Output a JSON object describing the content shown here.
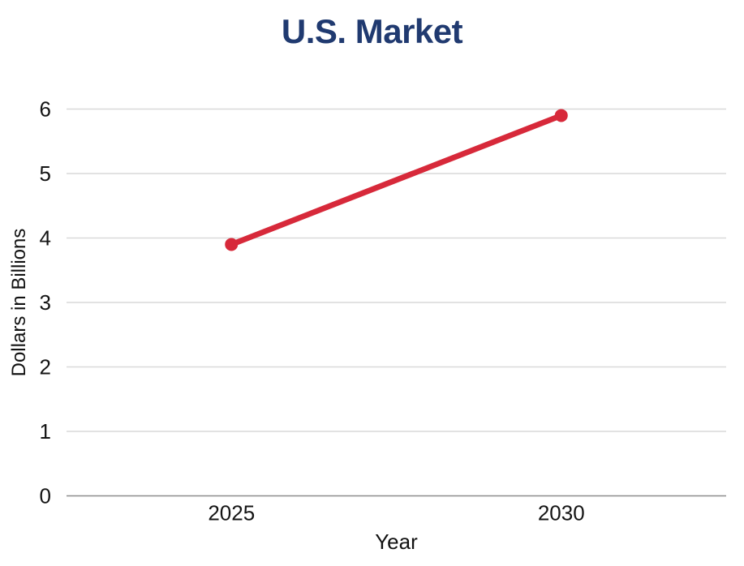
{
  "page": {
    "title": "U.S. Market"
  },
  "axes": {
    "x_title": "Year",
    "y_title": "Dollars in Billions"
  },
  "colors": {
    "title": "#203a70",
    "line": "#d7293a",
    "marker": "#d7293a",
    "gridline": "#d9d9d9",
    "zero_axis": "#8c8c8c",
    "tick_text": "#141414",
    "background": "#ffffff"
  },
  "chart_data": {
    "type": "line",
    "title": "U.S. Market",
    "xlabel": "Year",
    "ylabel": "Dollars in Billions",
    "x": [
      2025,
      2030
    ],
    "series": [
      {
        "name": "U.S. Market",
        "values": [
          3.9,
          5.9
        ]
      }
    ],
    "x_tick_labels": [
      "2025",
      "2030"
    ],
    "y_ticks": [
      0,
      1,
      2,
      3,
      4,
      5,
      6
    ],
    "ylim": [
      0,
      6
    ],
    "xlim": [
      2022.5,
      2032.5
    ],
    "grid": true,
    "legend_position": "none",
    "marker": "circle"
  }
}
